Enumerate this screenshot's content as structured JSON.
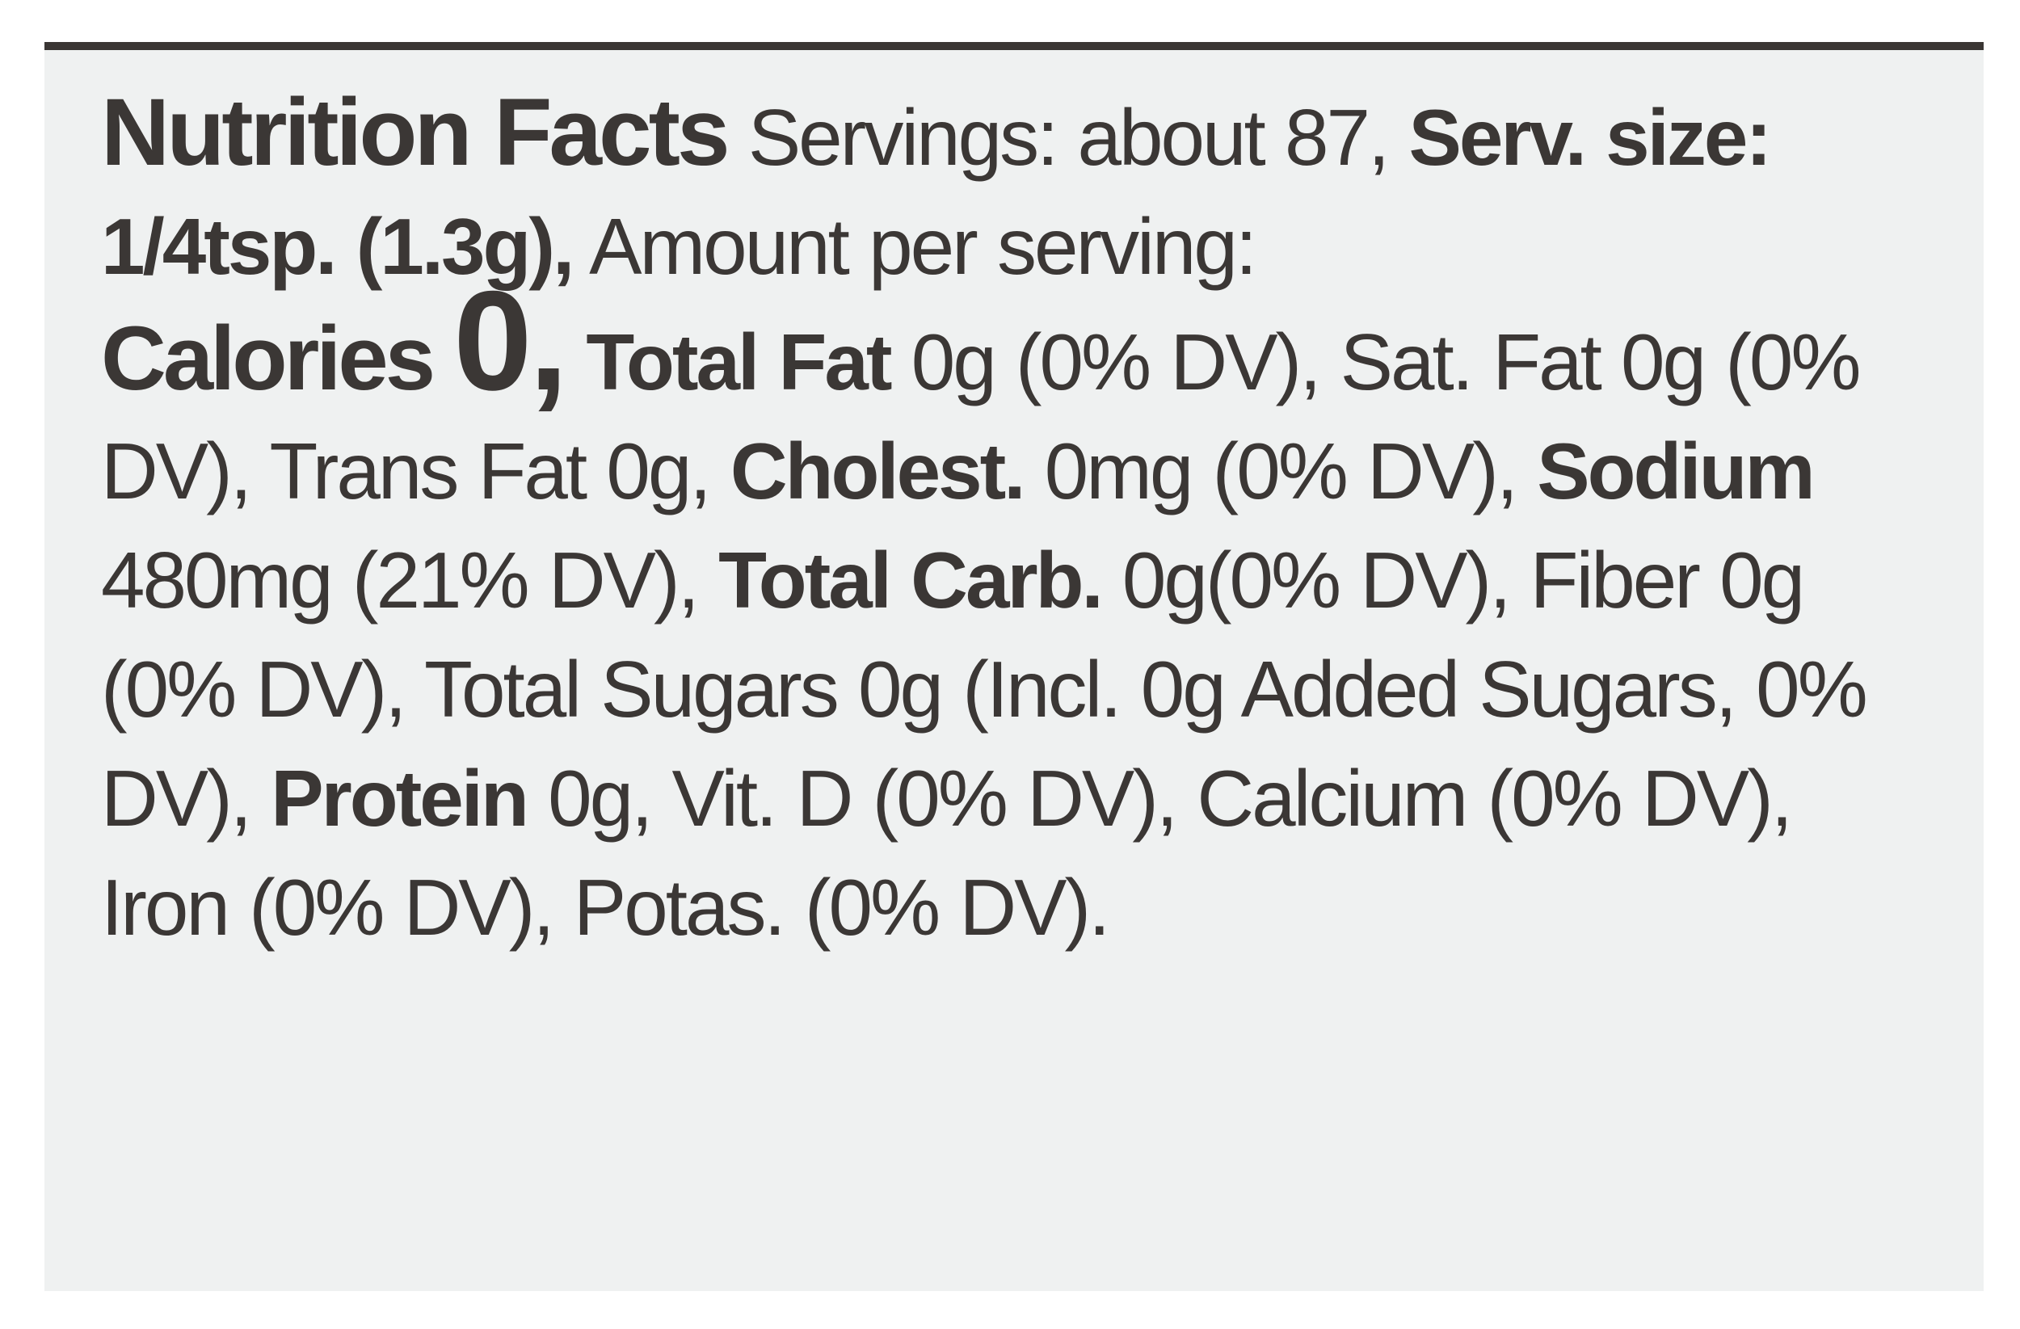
{
  "label": {
    "title": "Nutrition Facts",
    "servings": "Servings: about 87,",
    "serving_size_label": "Serv. size:",
    "serving_size_value": "1/4tsp. (1.3g),",
    "amount_per_serving": "Amount per serving:",
    "calories_label": "Calories",
    "calories_value": "0,",
    "total_fat_label": "Total Fat",
    "total_fat_value": "0g (0% DV),",
    "sat_fat": "Sat. Fat 0g (0% DV),",
    "trans_fat": "Trans Fat 0g,",
    "cholesterol_label": "Cholest.",
    "cholesterol_value": "0mg (0% DV),",
    "sodium_label": "Sodium",
    "sodium_value": "480mg (21% DV),",
    "total_carb_label": "Total Carb.",
    "total_carb_value": "0g(0% DV),",
    "fiber": "Fiber 0g (0% DV),",
    "total_sugars": "Total Sugars 0g (Incl. 0g Added Sugars, 0% DV),",
    "protein_label": "Protein",
    "protein_value": "0g,",
    "vitamin_d": "Vit. D (0% DV),",
    "calcium": "Calcium (0% DV),",
    "iron": "Iron (0% DV),",
    "potassium": "Potas. (0% DV)."
  },
  "colors": {
    "panel_background": "#eff1f1",
    "text": "#3b3735",
    "top_band": "#3a3634"
  }
}
